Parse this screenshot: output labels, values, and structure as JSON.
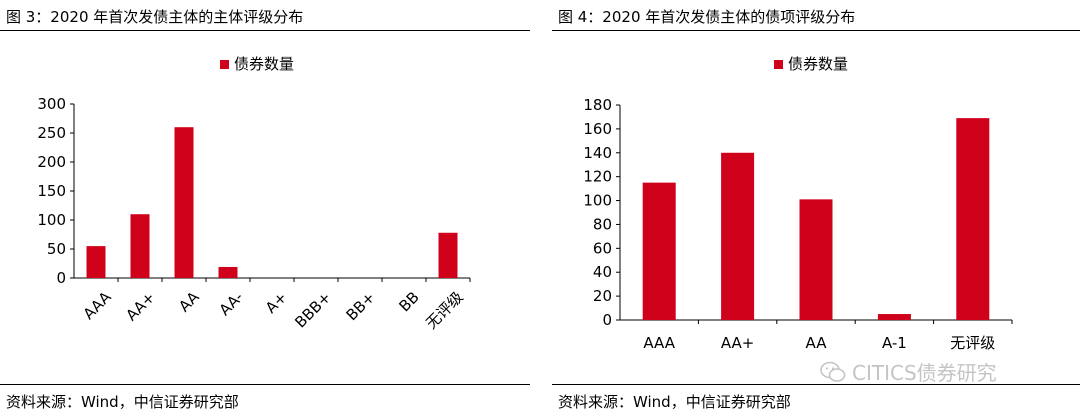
{
  "left_panel": {
    "title": "图 3：2020 年首次发债主体的主体评级分布",
    "source": "资料来源：Wind，中信证券研究部"
  },
  "right_panel": {
    "title": "图 4：2020 年首次发债主体的债项评级分布",
    "source": "资料来源：Wind，中信证券研究部"
  },
  "watermark": {
    "text": "CITICS债券研究",
    "icon": "wechat-icon"
  },
  "chart_data": [
    {
      "type": "bar",
      "categories": [
        "AAA",
        "AA+",
        "AA",
        "AA-",
        "A+",
        "BBB+",
        "BB+",
        "BB",
        "无评级"
      ],
      "series": [
        {
          "name": "债券数量",
          "values": [
            55,
            110,
            260,
            19,
            0,
            0,
            0,
            0,
            78
          ],
          "color": "#d0021b"
        }
      ],
      "yticks": [
        0,
        50,
        100,
        150,
        200,
        250,
        300
      ],
      "ylim": [
        0,
        300
      ],
      "legend_position": "top-center",
      "xlabel_rotation": -45,
      "grid": false
    },
    {
      "type": "bar",
      "categories": [
        "AAA",
        "AA+",
        "AA",
        "A-1",
        "无评级"
      ],
      "series": [
        {
          "name": "债券数量",
          "values": [
            115,
            140,
            101,
            5,
            169
          ],
          "color": "#d0021b"
        }
      ],
      "yticks": [
        0,
        20,
        40,
        60,
        80,
        100,
        120,
        140,
        160,
        180
      ],
      "ylim": [
        0,
        180
      ],
      "legend_position": "top-center",
      "xlabel_rotation": 0,
      "grid": false
    }
  ]
}
